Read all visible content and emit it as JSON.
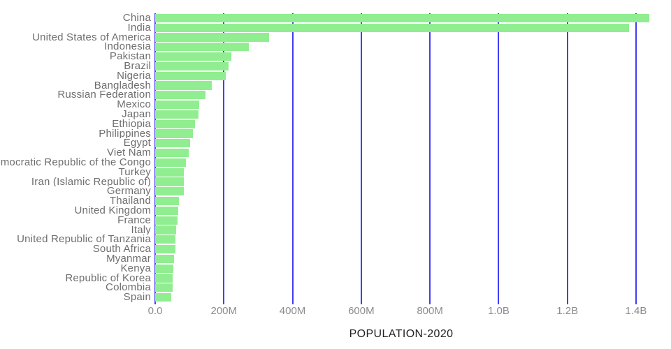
{
  "chart_data": {
    "type": "bar",
    "orientation": "horizontal",
    "title": "",
    "xlabel": "POPULATION-2020",
    "ylabel": "",
    "values_unit": "millions",
    "categories": [
      "China",
      "India",
      "United States of America",
      "Indonesia",
      "Pakistan",
      "Brazil",
      "Nigeria",
      "Bangladesh",
      "Russian Federation",
      "Mexico",
      "Japan",
      "Ethiopia",
      "Philippines",
      "Egypt",
      "Viet Nam",
      "Democratic Republic of the Congo",
      "Turkey",
      "Iran (Islamic Republic of)",
      "Germany",
      "Thailand",
      "United Kingdom",
      "France",
      "Italy",
      "United Republic of Tanzania",
      "South Africa",
      "Myanmar",
      "Kenya",
      "Republic of Korea",
      "Colombia",
      "Spain"
    ],
    "values": [
      1439.3,
      1380.0,
      331.0,
      273.5,
      220.9,
      212.6,
      206.1,
      164.7,
      145.9,
      128.9,
      126.5,
      115.0,
      109.6,
      102.3,
      97.3,
      89.6,
      84.3,
      84.0,
      83.8,
      69.8,
      67.9,
      65.3,
      60.5,
      59.7,
      59.3,
      54.4,
      53.8,
      51.3,
      50.9,
      46.8
    ],
    "xlim_millions": [
      0,
      1505
    ],
    "grid": true,
    "legend": "none",
    "xticks": [
      {
        "value": 0,
        "label": "0.0"
      },
      {
        "value": 200,
        "label": "200M"
      },
      {
        "value": 400,
        "label": "400M"
      },
      {
        "value": 600,
        "label": "600M"
      },
      {
        "value": 800,
        "label": "800M"
      },
      {
        "value": 1000,
        "label": "1.0B"
      },
      {
        "value": 1200,
        "label": "1.2B"
      },
      {
        "value": 1400,
        "label": "1.4B"
      }
    ],
    "colors": {
      "bar_fill": "#90EE90",
      "gridline": "#423ef2",
      "category_label": "#6e6e6e",
      "tick_label": "#8c8c8c",
      "axis_title": "#212121",
      "background": "#ffffff"
    }
  }
}
